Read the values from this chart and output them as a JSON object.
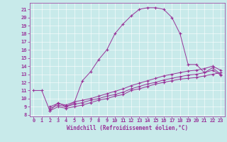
{
  "xlabel": "Windchill (Refroidissement éolien,°C)",
  "bg_color": "#c8eaea",
  "line_color": "#993399",
  "xlim": [
    -0.5,
    23.5
  ],
  "ylim": [
    7.8,
    21.8
  ],
  "xticks": [
    0,
    1,
    2,
    3,
    4,
    5,
    6,
    7,
    8,
    9,
    10,
    11,
    12,
    13,
    14,
    15,
    16,
    17,
    18,
    19,
    20,
    21,
    22,
    23
  ],
  "yticks": [
    8,
    9,
    10,
    11,
    12,
    13,
    14,
    15,
    16,
    17,
    18,
    19,
    20,
    21
  ],
  "curve1_x": [
    0,
    1,
    2,
    3,
    4,
    5,
    6,
    7,
    8,
    9,
    10,
    11,
    12,
    13,
    14,
    15,
    16,
    17,
    18,
    19,
    20,
    21,
    22,
    23
  ],
  "curve1_y": [
    11.0,
    11.0,
    8.5,
    9.5,
    9.0,
    9.5,
    12.2,
    13.3,
    14.8,
    16.0,
    18.0,
    19.2,
    20.2,
    21.0,
    21.2,
    21.2,
    21.0,
    20.0,
    18.0,
    14.2,
    14.2,
    13.2,
    13.8,
    13.0
  ],
  "curve2_x": [
    2,
    3,
    4,
    5,
    6,
    7,
    8,
    9,
    10,
    11,
    12,
    13,
    14,
    15,
    16,
    17,
    18,
    19,
    20,
    21,
    22,
    23
  ],
  "curve2_y": [
    8.5,
    9.0,
    8.8,
    9.0,
    9.2,
    9.5,
    9.8,
    10.0,
    10.3,
    10.5,
    11.0,
    11.2,
    11.5,
    11.8,
    12.0,
    12.2,
    12.4,
    12.5,
    12.6,
    12.8,
    13.0,
    13.2
  ],
  "curve3_x": [
    2,
    3,
    4,
    5,
    6,
    7,
    8,
    9,
    10,
    11,
    12,
    13,
    14,
    15,
    16,
    17,
    18,
    19,
    20,
    21,
    22,
    23
  ],
  "curve3_y": [
    8.8,
    9.2,
    9.0,
    9.3,
    9.5,
    9.8,
    10.0,
    10.3,
    10.5,
    10.8,
    11.2,
    11.5,
    11.8,
    12.0,
    12.3,
    12.5,
    12.7,
    12.9,
    13.0,
    13.2,
    13.5,
    12.9
  ],
  "curve4_x": [
    2,
    3,
    4,
    5,
    6,
    7,
    8,
    9,
    10,
    11,
    12,
    13,
    14,
    15,
    16,
    17,
    18,
    19,
    20,
    21,
    22,
    23
  ],
  "curve4_y": [
    9.0,
    9.4,
    9.2,
    9.6,
    9.8,
    10.0,
    10.3,
    10.6,
    10.9,
    11.2,
    11.6,
    11.9,
    12.2,
    12.5,
    12.8,
    13.0,
    13.2,
    13.4,
    13.5,
    13.7,
    14.0,
    13.5
  ],
  "xlabel_fontsize": 5.5,
  "tick_fontsize": 5.0
}
